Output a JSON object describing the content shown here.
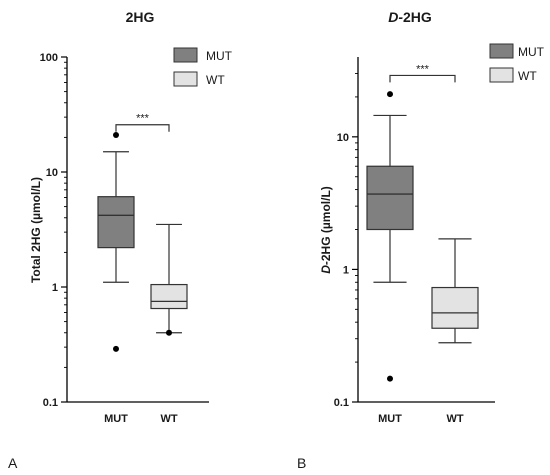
{
  "chart_data": [
    {
      "type": "box",
      "panel_letter": "A",
      "title": "2HG",
      "title_italic_prefix": "",
      "ylabel": "Total 2HG (µmol/L)",
      "ylabel_italic_prefix": "",
      "yscale": "log",
      "ylim": [
        0.1,
        100
      ],
      "yticks": [
        0.1,
        1,
        10,
        100
      ],
      "ytick_labels": [
        "0.1",
        "1",
        "10",
        "100"
      ],
      "categories": [
        "MUT",
        "WT"
      ],
      "legend": {
        "position": "top-right",
        "entries": [
          "MUT",
          "WT"
        ]
      },
      "significance": {
        "label": "***",
        "between": [
          "MUT",
          "WT"
        ]
      },
      "series": [
        {
          "name": "MUT",
          "color": "#808080",
          "whisker_low": 1.1,
          "q1": 2.2,
          "median": 4.2,
          "q3": 6.1,
          "whisker_high": 15,
          "outliers": [
            21,
            0.29
          ]
        },
        {
          "name": "WT",
          "color": "#e3e3e3",
          "whisker_low": 0.4,
          "q1": 0.65,
          "median": 0.75,
          "q3": 1.05,
          "whisker_high": 3.5,
          "outliers": [
            0.4
          ]
        }
      ]
    },
    {
      "type": "box",
      "panel_letter": "B",
      "title": "2HG",
      "title_italic_prefix": "D-",
      "ylabel": "2HG (µmol/L)",
      "ylabel_italic_prefix": "D-",
      "yscale": "log",
      "ylim": [
        0.1,
        40
      ],
      "yticks": [
        0.1,
        1,
        10
      ],
      "ytick_labels": [
        "0.1",
        "1",
        "10"
      ],
      "categories": [
        "MUT",
        "WT"
      ],
      "legend": {
        "position": "top-right",
        "entries": [
          "MUT",
          "WT"
        ]
      },
      "significance": {
        "label": "***",
        "between": [
          "MUT",
          "WT"
        ]
      },
      "series": [
        {
          "name": "MUT",
          "color": "#808080",
          "whisker_low": 0.8,
          "q1": 2.0,
          "median": 3.7,
          "q3": 6.0,
          "whisker_high": 14.5,
          "outliers": [
            21,
            0.15
          ]
        },
        {
          "name": "WT",
          "color": "#e3e3e3",
          "whisker_low": 0.28,
          "q1": 0.36,
          "median": 0.47,
          "q3": 0.73,
          "whisker_high": 1.7,
          "outliers": []
        }
      ]
    }
  ]
}
